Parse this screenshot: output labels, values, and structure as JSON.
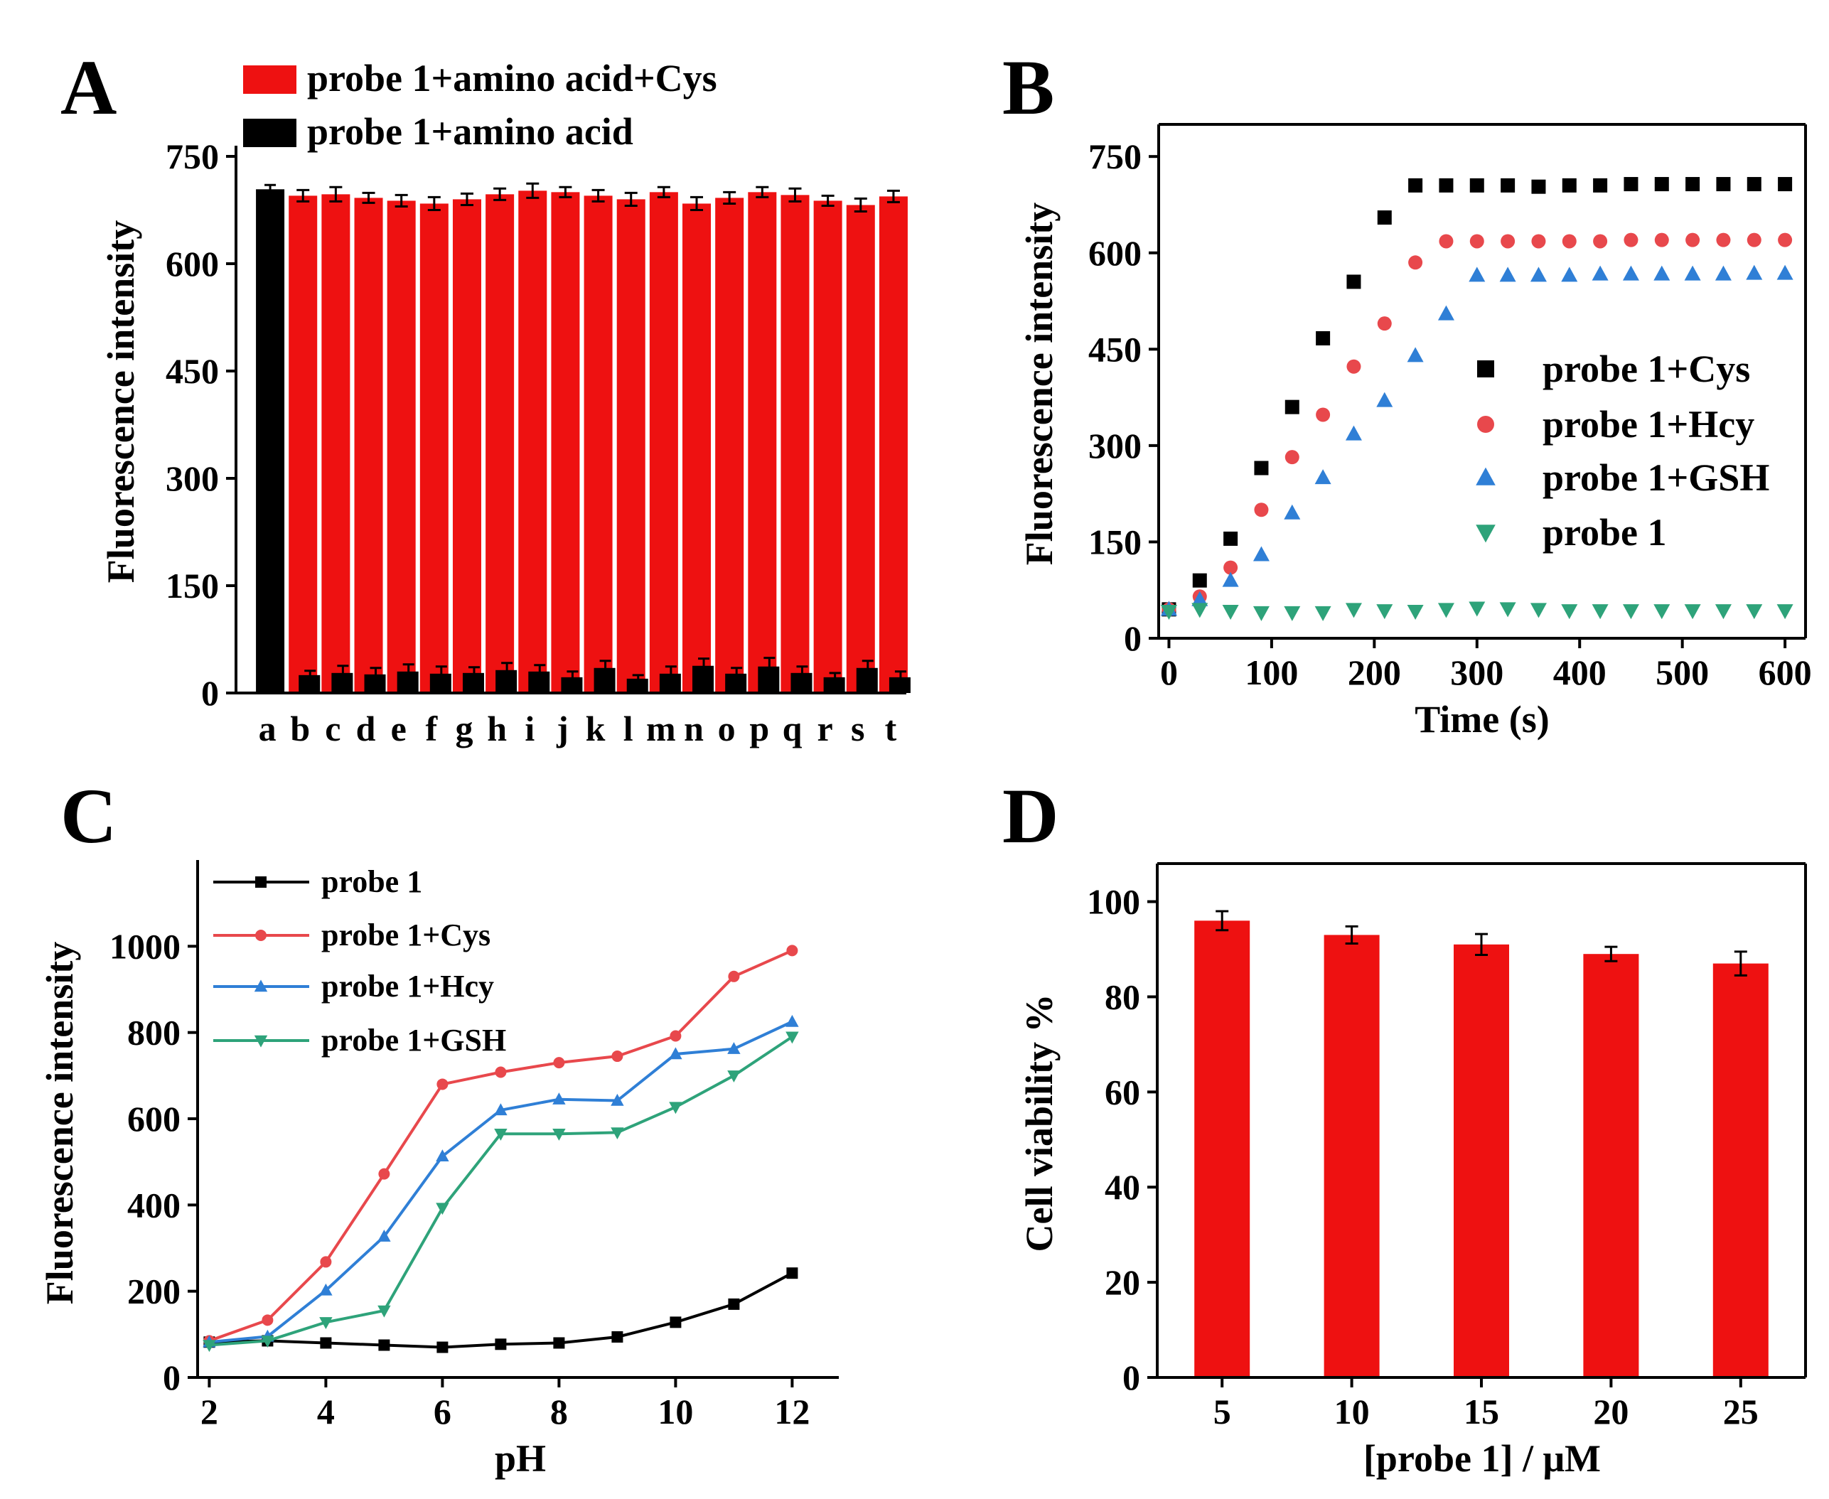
{
  "panels": {
    "A": {
      "letter": "A"
    },
    "B": {
      "letter": "B"
    },
    "C": {
      "letter": "C"
    },
    "D": {
      "letter": "D"
    }
  },
  "colors": {
    "red": "#ee1111",
    "black": "#000000",
    "b_cys": "#000000",
    "b_hcy": "#e8484c",
    "b_gsh": "#2f7fd6",
    "b_probe": "#2ea37a",
    "c_probe": "#000000",
    "c_cys": "#e8484c",
    "c_hcy": "#2f7fd6",
    "c_gsh": "#2ea37a"
  },
  "chart_data": [
    {
      "panel": "A",
      "type": "bar",
      "title": "",
      "xlabel": "",
      "ylabel": "Fluorescence intensity",
      "ylim": [
        0,
        750
      ],
      "yticks": [
        0,
        150,
        300,
        450,
        600,
        750
      ],
      "categories": [
        "a",
        "b",
        "c",
        "d",
        "e",
        "f",
        "g",
        "h",
        "i",
        "j",
        "k",
        "l",
        "m",
        "n",
        "o",
        "p",
        "q",
        "r",
        "s",
        "t"
      ],
      "series": [
        {
          "name": "probe 1+amino acid+Cys",
          "color": "red",
          "values": [
            null,
            695,
            697,
            692,
            688,
            684,
            690,
            697,
            702,
            700,
            695,
            690,
            700,
            684,
            692,
            700,
            696,
            688,
            682,
            694
          ],
          "errors": [
            null,
            8,
            10,
            7,
            8,
            9,
            8,
            8,
            10,
            7,
            8,
            9,
            7,
            9,
            8,
            7,
            9,
            7,
            9,
            8
          ]
        },
        {
          "name": "probe 1+amino acid",
          "color": "black",
          "values": [
            704,
            25,
            28,
            26,
            30,
            27,
            28,
            32,
            30,
            22,
            35,
            20,
            27,
            38,
            27,
            37,
            28,
            22,
            35,
            22
          ],
          "errors": [
            6,
            6,
            10,
            9,
            10,
            10,
            8,
            10,
            9,
            8,
            10,
            5,
            10,
            10,
            8,
            12,
            9,
            6,
            10,
            8
          ]
        }
      ]
    },
    {
      "panel": "B",
      "type": "scatter",
      "title": "",
      "xlabel": "Time (s)",
      "ylabel": "Fluorescence intensity",
      "xlim": [
        -10,
        620
      ],
      "ylim": [
        0,
        800
      ],
      "xticks": [
        0,
        100,
        200,
        300,
        400,
        500,
        600
      ],
      "yticks": [
        0,
        150,
        300,
        450,
        600,
        750
      ],
      "x": [
        0,
        30,
        60,
        90,
        120,
        150,
        180,
        210,
        240,
        270,
        300,
        330,
        360,
        390,
        420,
        450,
        480,
        510,
        540,
        570,
        600
      ],
      "series": [
        {
          "name": "probe 1+Cys",
          "color": "b_cys",
          "marker": "square",
          "values": [
            45,
            90,
            155,
            265,
            360,
            467,
            555,
            655,
            705,
            705,
            705,
            705,
            703,
            705,
            705,
            707,
            707,
            707,
            707,
            707,
            707
          ]
        },
        {
          "name": "probe 1+Hcy",
          "color": "b_hcy",
          "marker": "circle",
          "values": [
            45,
            65,
            110,
            200,
            282,
            348,
            423,
            490,
            585,
            618,
            618,
            618,
            618,
            618,
            618,
            620,
            620,
            620,
            620,
            620,
            620
          ]
        },
        {
          "name": "probe 1+GSH",
          "color": "b_gsh",
          "marker": "triangle-up",
          "values": [
            45,
            60,
            90,
            130,
            195,
            250,
            318,
            370,
            440,
            505,
            565,
            565,
            565,
            565,
            567,
            567,
            567,
            567,
            567,
            568,
            568
          ]
        },
        {
          "name": "probe 1",
          "color": "b_probe",
          "marker": "triangle-down",
          "values": [
            42,
            45,
            42,
            40,
            40,
            40,
            45,
            43,
            42,
            45,
            47,
            46,
            45,
            43,
            43,
            43,
            43,
            43,
            43,
            43,
            43
          ]
        }
      ]
    },
    {
      "panel": "C",
      "type": "line",
      "title": "",
      "xlabel": "pH",
      "ylabel": "Fluorescence intensity",
      "xlim": [
        1.8,
        12.8
      ],
      "ylim": [
        0,
        1200
      ],
      "xticks": [
        2,
        4,
        6,
        8,
        10,
        12
      ],
      "yticks": [
        0,
        200,
        400,
        600,
        800,
        1000
      ],
      "x": [
        2,
        3,
        4,
        5,
        6,
        7,
        8,
        9,
        10,
        11,
        12
      ],
      "series": [
        {
          "name": "probe 1",
          "color": "c_probe",
          "marker": "square",
          "values": [
            82,
            85,
            80,
            75,
            70,
            77,
            80,
            94,
            128,
            170,
            242
          ]
        },
        {
          "name": "probe 1+Cys",
          "color": "c_cys",
          "marker": "circle",
          "values": [
            85,
            133,
            268,
            472,
            680,
            708,
            730,
            745,
            792,
            930,
            990
          ]
        },
        {
          "name": "probe 1+Hcy",
          "color": "c_hcy",
          "marker": "triangle-up",
          "values": [
            82,
            95,
            202,
            327,
            513,
            620,
            645,
            642,
            750,
            762,
            825
          ]
        },
        {
          "name": "probe 1+GSH",
          "color": "c_gsh",
          "marker": "triangle-down",
          "values": [
            75,
            85,
            128,
            155,
            393,
            565,
            565,
            568,
            627,
            700,
            790
          ]
        }
      ]
    },
    {
      "panel": "D",
      "type": "bar",
      "title": "",
      "xlabel": "[probe 1] / μM",
      "ylabel": "Cell viability %",
      "ylim": [
        0,
        108
      ],
      "yticks": [
        0,
        20,
        40,
        60,
        80,
        100
      ],
      "categories": [
        "5",
        "10",
        "15",
        "20",
        "25"
      ],
      "series": [
        {
          "name": "Cell viability",
          "color": "red",
          "values": [
            96,
            93,
            91,
            89,
            87
          ],
          "errors": [
            2,
            1.8,
            2.2,
            1.5,
            2.5
          ]
        }
      ]
    }
  ]
}
